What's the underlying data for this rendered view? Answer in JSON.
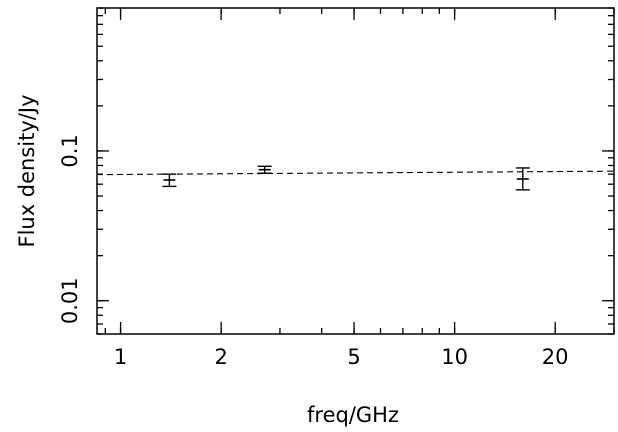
{
  "chart_data": {
    "type": "scatter",
    "title": "",
    "xlabel": "freq/GHz",
    "ylabel": "Flux density/Jy",
    "x_scale": "log",
    "y_scale": "log",
    "xlim": [
      0.85,
      30
    ],
    "ylim": [
      0.006,
      0.9
    ],
    "x_ticks": [
      {
        "value": 1,
        "label": "1"
      },
      {
        "value": 2,
        "label": "2"
      },
      {
        "value": 5,
        "label": "5"
      },
      {
        "value": 10,
        "label": "10"
      },
      {
        "value": 20,
        "label": "20"
      }
    ],
    "y_ticks": [
      {
        "value": 0.01,
        "label": "0.01"
      },
      {
        "value": 0.1,
        "label": "0.1"
      }
    ],
    "grid": false,
    "legend": "none",
    "series": [
      {
        "points": [
          {
            "x": 1.4,
            "y": 0.064,
            "y_low": 0.058,
            "y_high": 0.07
          },
          {
            "x": 2.7,
            "y": 0.075,
            "y_low": 0.071,
            "y_high": 0.079
          },
          {
            "x": 16,
            "y": 0.065,
            "y_low": 0.055,
            "y_high": 0.077
          }
        ]
      }
    ],
    "fit_line": {
      "style": "dashed",
      "points": [
        [
          0.85,
          0.0695
        ],
        [
          30,
          0.0733
        ]
      ]
    },
    "colors": {
      "ink": "#000000",
      "background": "#ffffff"
    }
  }
}
